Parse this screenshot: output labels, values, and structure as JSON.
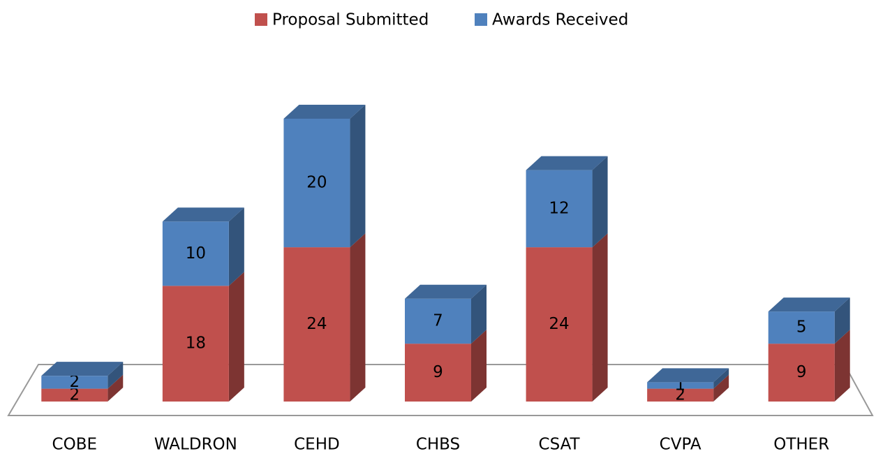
{
  "chart_data": {
    "type": "bar3d_stacked",
    "categories": [
      "COBE",
      "WALDRON",
      "CEHD",
      "CHBS",
      "CSAT",
      "CVPA",
      "OTHER"
    ],
    "series": [
      {
        "name": "Proposal Submitted",
        "color": "#c0504d",
        "values": [
          2,
          18,
          24,
          9,
          24,
          2,
          9
        ]
      },
      {
        "name": "Awards Received",
        "color": "#4f81bd",
        "values": [
          2,
          10,
          20,
          7,
          12,
          1,
          5
        ]
      }
    ],
    "legend": "top"
  }
}
